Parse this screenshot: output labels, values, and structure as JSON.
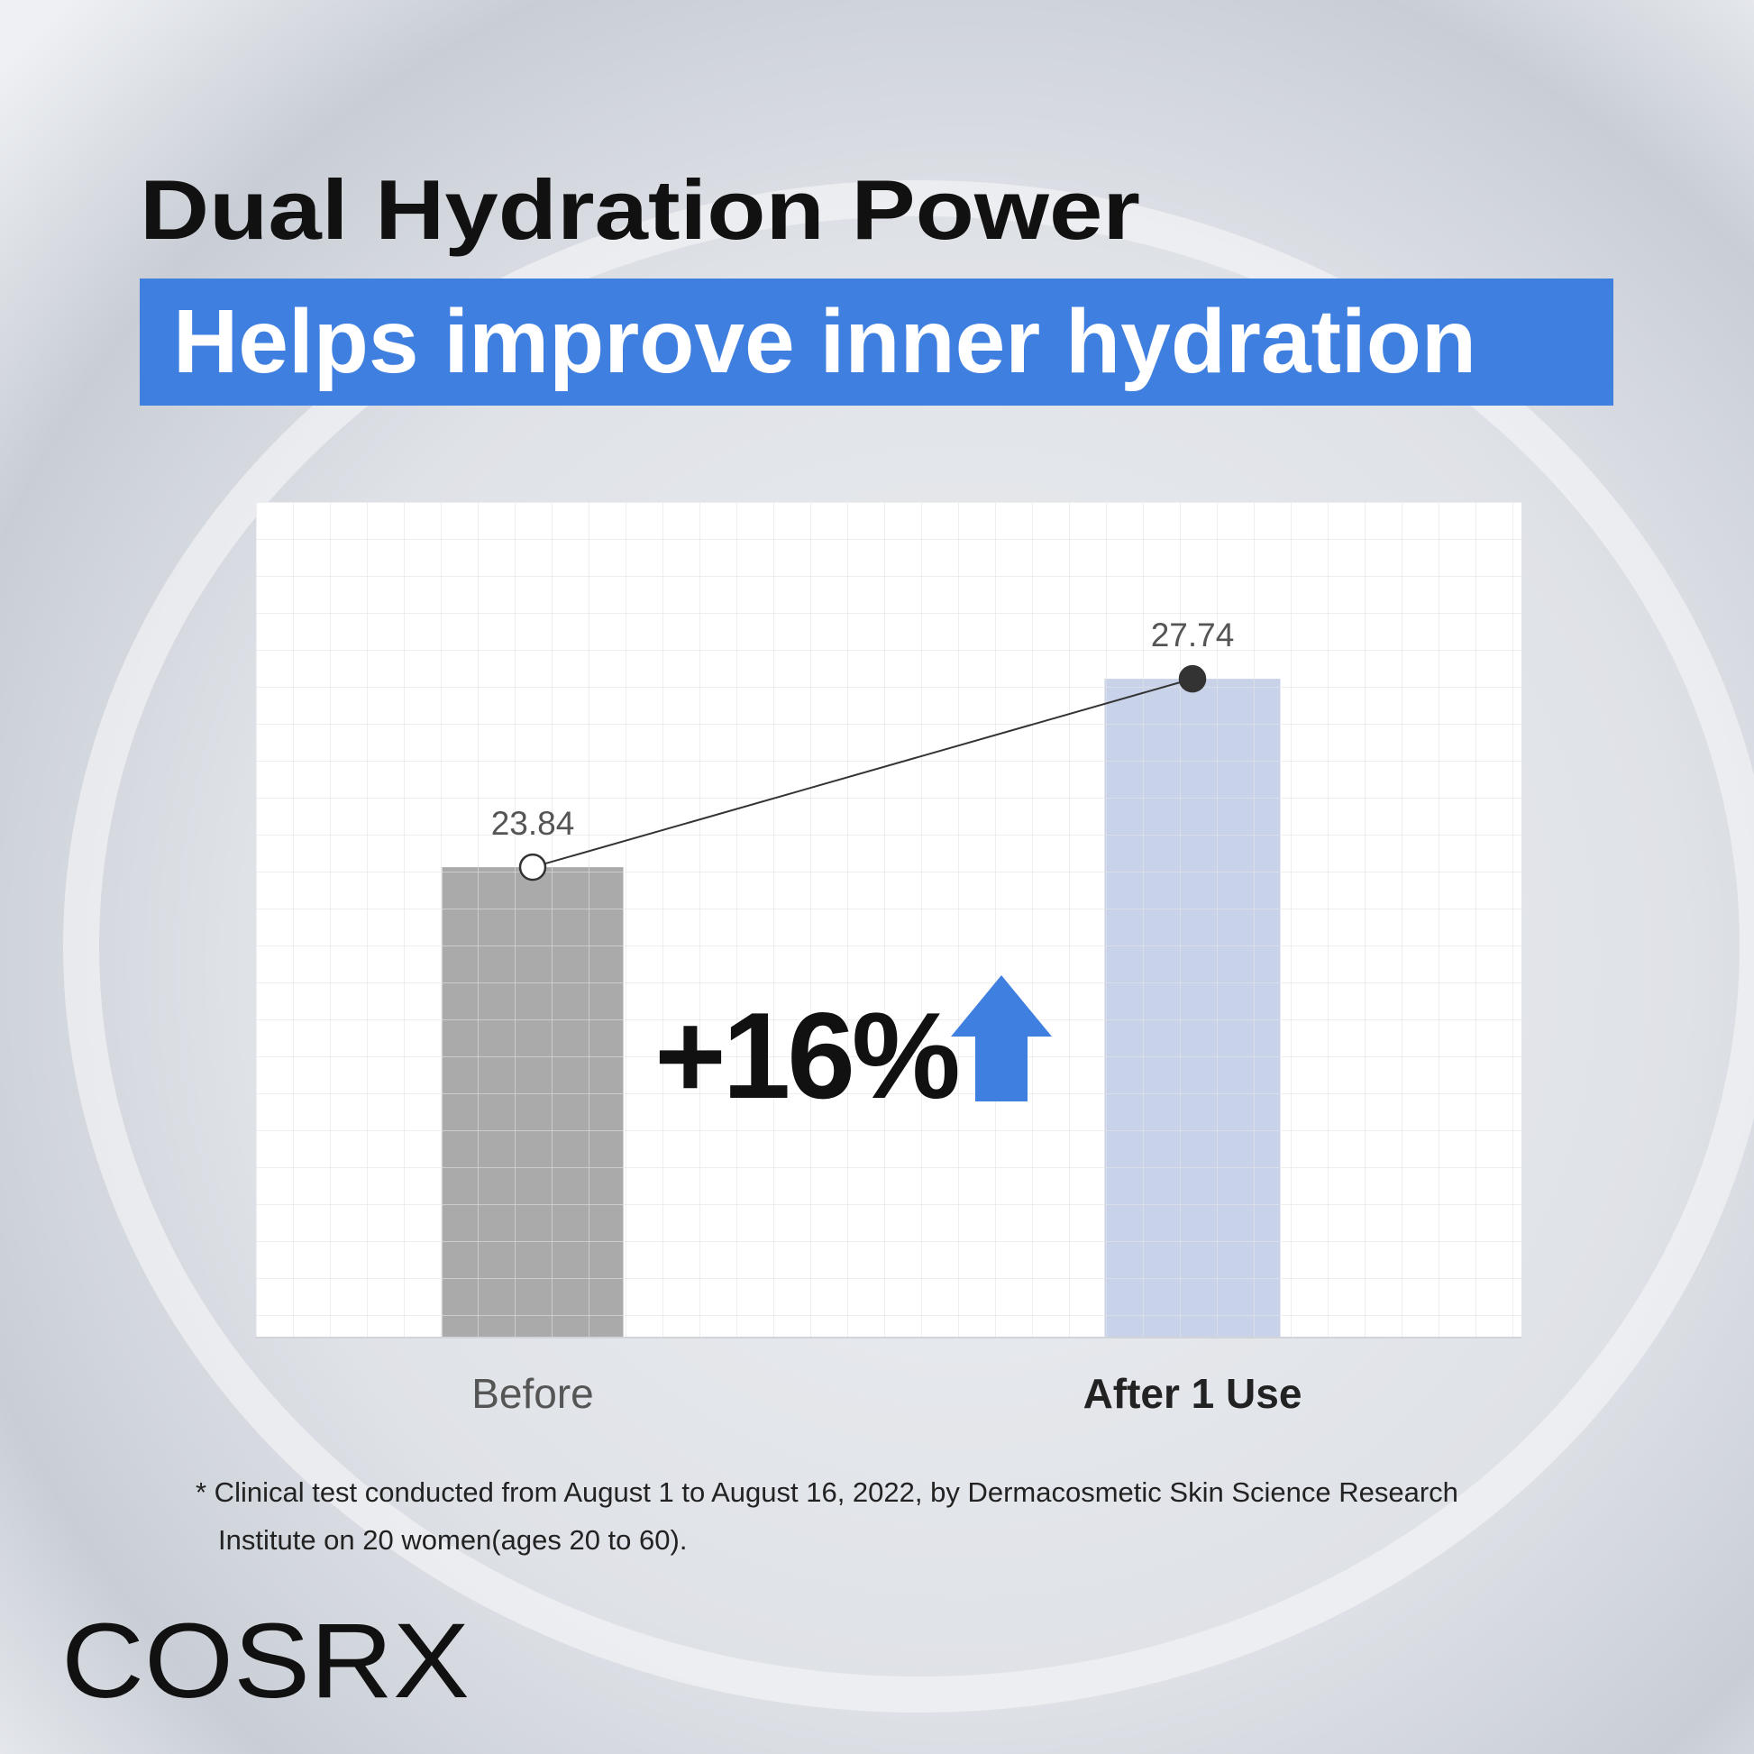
{
  "chart_data": {
    "type": "bar",
    "title": "Dual Hydration Power",
    "subtitle": "Helps improve inner hydration",
    "categories": [
      "Before",
      "After 1 Use"
    ],
    "values": [
      23.84,
      27.74
    ],
    "colors": [
      "#aaaaaa",
      "#c8d3ea"
    ],
    "ylim": [
      14.1,
      31.4
    ],
    "grid": true,
    "annotation": "+16%",
    "footnote": [
      "* Clinical test conducted from August 1 to August 16, 2022, by Dermacosmetic Skin Science Research",
      "Institute on 20 women(ages 20 to 60)."
    ],
    "brand": "COSRX"
  }
}
